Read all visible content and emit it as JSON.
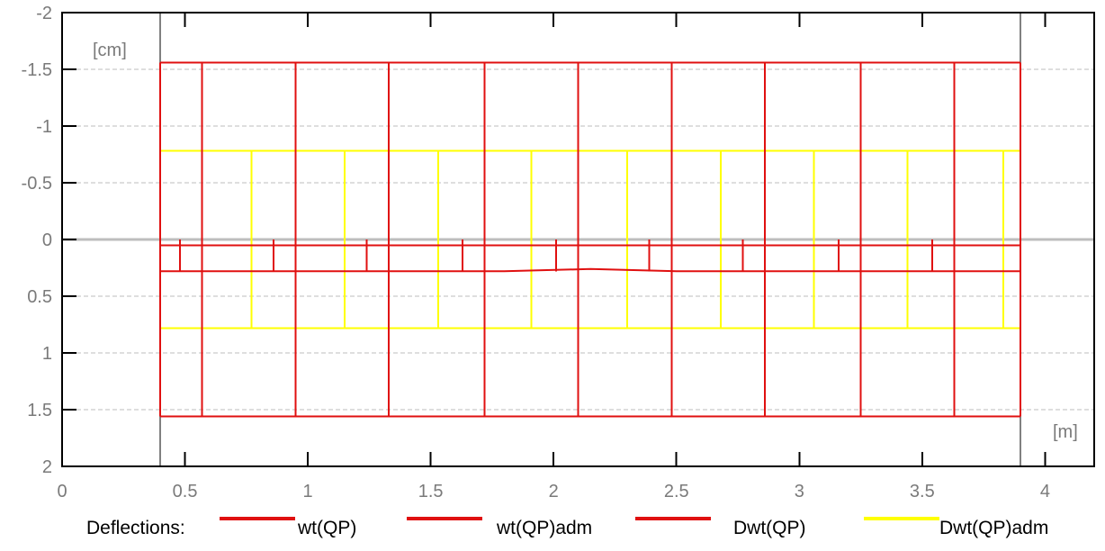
{
  "chart_data": {
    "type": "line",
    "title": "",
    "xlabel": "[m]",
    "ylabel": "[cm]",
    "xlim": [
      0,
      4.2
    ],
    "ylim": [
      2,
      -2
    ],
    "y_inverted": true,
    "grid": true,
    "x_ticks": [
      {
        "value": 0,
        "label": "0"
      },
      {
        "value": 0.5,
        "label": "0.5"
      },
      {
        "value": 1,
        "label": "1"
      },
      {
        "value": 1.5,
        "label": "1.5"
      },
      {
        "value": 2,
        "label": "2"
      },
      {
        "value": 2.5,
        "label": "2.5"
      },
      {
        "value": 3,
        "label": "3"
      },
      {
        "value": 3.5,
        "label": "3.5"
      },
      {
        "value": 4,
        "label": "4"
      }
    ],
    "y_ticks": [
      {
        "value": -2,
        "label": "-2"
      },
      {
        "value": -1.5,
        "label": "-1.5"
      },
      {
        "value": -1,
        "label": "-1"
      },
      {
        "value": -0.5,
        "label": "-0.5"
      },
      {
        "value": 0,
        "label": "0"
      },
      {
        "value": 0.5,
        "label": "0.5"
      },
      {
        "value": 1,
        "label": "1"
      },
      {
        "value": 1.5,
        "label": "1.5"
      },
      {
        "value": 2,
        "label": "2"
      }
    ],
    "supports": [
      0.4,
      3.9
    ],
    "beam": {
      "x_start": 0.4,
      "x_end": 3.9,
      "y": 0
    },
    "legend_title": "Deflections:",
    "legend_position": "bottom",
    "series": [
      {
        "name": "wt(QP)",
        "color": "#e01010",
        "baseline": 0,
        "values_x": [
          0.4,
          1.0,
          1.5,
          1.8,
          2.15,
          2.5,
          3.0,
          3.9
        ],
        "values_y": [
          0.28,
          0.28,
          0.28,
          0.28,
          0.26,
          0.28,
          0.28,
          0.28
        ]
      },
      {
        "name": "wt(QP)adm",
        "color": "#e01010",
        "level": 1.56,
        "baseline": 0,
        "verticals_x": [
          0.4,
          0.57,
          0.95,
          1.33,
          1.72,
          2.1,
          2.48,
          2.86,
          3.25,
          3.63,
          3.9
        ]
      },
      {
        "name": "Dwt(QP)",
        "color": "#e01010",
        "values_y": 0.05,
        "baseline": 0,
        "ticks_x": [
          0.48,
          0.86,
          1.24,
          1.63,
          2.01,
          2.39,
          2.77,
          3.16,
          3.54
        ]
      },
      {
        "name": "Dwt(QP)adm",
        "color": "#ffff00",
        "level": 0.78,
        "baseline": 0,
        "verticals_x": [
          0.4,
          0.77,
          1.15,
          1.53,
          1.91,
          2.3,
          2.68,
          3.06,
          3.44,
          3.83,
          3.9
        ]
      }
    ]
  }
}
